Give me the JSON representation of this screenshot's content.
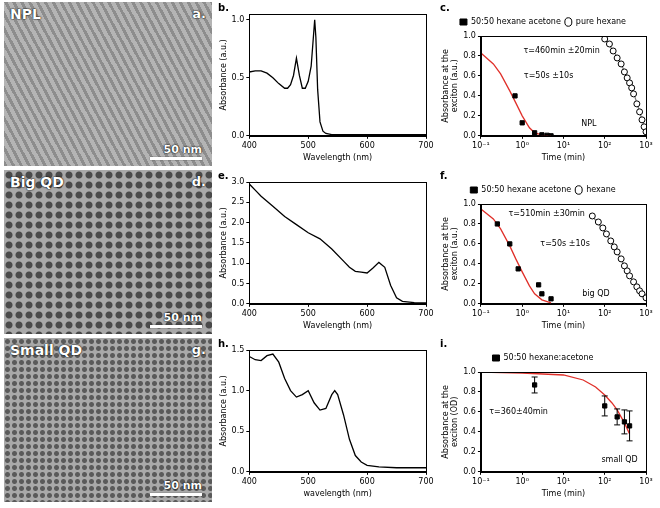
{
  "images": [
    {
      "panel": "a.",
      "label": "NPL",
      "scale_bar": "50 nm"
    },
    {
      "panel": "d.",
      "label": "Big QD",
      "scale_bar": "50 nm"
    },
    {
      "panel": "g.",
      "label": "Small QD",
      "scale_bar": "50 nm"
    }
  ],
  "chart_data": [
    {
      "panel": "b.",
      "type": "line",
      "xlabel": "Wavelength (nm)",
      "ylabel": "Absorbance (a.u.)",
      "xlim": [
        400,
        700
      ],
      "xticks": [
        400,
        500,
        600,
        700
      ],
      "ylim": [
        0,
        1.05
      ],
      "yticks": [
        {
          "value": 0,
          "label": "0.0"
        },
        0.5,
        {
          "value": 1,
          "label": "1.0"
        }
      ],
      "grid": false,
      "series": [
        {
          "color": "#000000",
          "marker": "none",
          "line_style": "solid",
          "x": [
            400,
            410,
            420,
            430,
            440,
            450,
            460,
            465,
            470,
            475,
            480,
            485,
            490,
            495,
            500,
            505,
            508,
            511,
            513,
            516,
            520,
            525,
            530,
            540,
            560,
            600,
            650,
            700
          ],
          "values": [
            0.55,
            0.56,
            0.56,
            0.54,
            0.5,
            0.45,
            0.41,
            0.41,
            0.44,
            0.52,
            0.67,
            0.52,
            0.41,
            0.41,
            0.47,
            0.6,
            0.8,
            1.0,
            0.85,
            0.4,
            0.12,
            0.04,
            0.02,
            0.01,
            0.01,
            0.01,
            0.01,
            0.01
          ]
        }
      ]
    },
    {
      "panel": "c.",
      "type": "scatter",
      "xlabel": "Time (min)",
      "ylabel": "Absorbance at the exciton (a.u.)",
      "log": "x",
      "xlim": [
        0.1,
        1000
      ],
      "xticks": [
        {
          "value": 0.1,
          "label": "10⁻¹"
        },
        {
          "value": 1,
          "label": "10⁰"
        },
        {
          "value": 10,
          "label": "10¹"
        },
        {
          "value": 100,
          "label": "10²"
        },
        {
          "value": 1000,
          "label": "10³"
        }
      ],
      "ylim": [
        0,
        1
      ],
      "yticks": [
        {
          "value": 0,
          "label": "0.0"
        },
        0.2,
        0.4,
        0.6,
        0.8,
        {
          "value": 1,
          "label": "1.0"
        }
      ],
      "grid": false,
      "legend": "top",
      "annotations": [
        "τ=50s ±10s",
        "τ=460min ±20min",
        "NPL"
      ],
      "series": [
        {
          "name": "50:50 hexane acetone",
          "color": "#000000",
          "marker": "square",
          "line_style": "none",
          "x": [
            0.67,
            1,
            2,
            3,
            4,
            5
          ],
          "values": [
            0.4,
            0.13,
            0.03,
            0.01,
            0.005,
            0
          ]
        },
        {
          "name": "pure hexane",
          "color": "#000000",
          "marker": "open_circle",
          "line_style": "none",
          "x": [
            100,
            130,
            160,
            200,
            250,
            300,
            350,
            400,
            450,
            500,
            600,
            700,
            800,
            900,
            1000
          ],
          "values": [
            0.97,
            0.92,
            0.85,
            0.78,
            0.72,
            0.64,
            0.58,
            0.53,
            0.48,
            0.42,
            0.32,
            0.24,
            0.16,
            0.09,
            0.04
          ]
        },
        {
          "color": "#e0302a",
          "marker": "none",
          "line_style": "solid",
          "x": [
            0.1,
            0.2,
            0.3,
            0.5,
            0.7,
            1,
            1.5,
            2,
            3,
            5
          ],
          "values": [
            0.83,
            0.72,
            0.62,
            0.45,
            0.33,
            0.2,
            0.08,
            0.03,
            0.01,
            0
          ]
        },
        {
          "color": "#808080",
          "marker": "none",
          "line_style": "solid",
          "x": [
            100,
            200,
            300,
            400,
            500,
            600,
            700,
            800,
            900,
            1000
          ],
          "values": [
            0.98,
            0.79,
            0.65,
            0.53,
            0.43,
            0.33,
            0.24,
            0.16,
            0.1,
            0.05
          ]
        }
      ]
    },
    {
      "panel": "e.",
      "type": "line",
      "xlabel": "Wavelength (nm)",
      "ylabel": "Absorbance (a.u.)",
      "xlim": [
        400,
        700
      ],
      "xticks": [
        400,
        500,
        600,
        700
      ],
      "ylim": [
        0,
        3
      ],
      "yticks": [
        {
          "value": 0,
          "label": "0.0"
        },
        0.5,
        {
          "value": 1,
          "label": "1.0"
        },
        1.5,
        {
          "value": 2,
          "label": "2.0"
        },
        2.5,
        {
          "value": 3,
          "label": "3.0"
        }
      ],
      "grid": false,
      "series": [
        {
          "color": "#000000",
          "marker": "none",
          "line_style": "solid",
          "x": [
            400,
            410,
            420,
            440,
            460,
            480,
            500,
            520,
            540,
            560,
            570,
            580,
            590,
            600,
            610,
            620,
            630,
            640,
            650,
            660,
            680,
            700
          ],
          "values": [
            2.95,
            2.8,
            2.65,
            2.4,
            2.15,
            1.95,
            1.75,
            1.6,
            1.35,
            1.05,
            0.9,
            0.8,
            0.78,
            0.76,
            0.88,
            1.02,
            0.9,
            0.45,
            0.15,
            0.06,
            0.03,
            0.02
          ]
        }
      ]
    },
    {
      "panel": "f.",
      "type": "scatter",
      "xlabel": "Time (min)",
      "ylabel": "Absorbance at the exciton (a.u.)",
      "log": "x",
      "xlim": [
        0.1,
        1000
      ],
      "xticks": [
        {
          "value": 0.1,
          "label": "10⁻¹"
        },
        {
          "value": 1,
          "label": "10⁰"
        },
        {
          "value": 10,
          "label": "10¹"
        },
        {
          "value": 100,
          "label": "10²"
        },
        {
          "value": 1000,
          "label": "10³"
        }
      ],
      "ylim": [
        0,
        1
      ],
      "yticks": [
        {
          "value": 0,
          "label": "0.0"
        },
        0.2,
        0.4,
        0.6,
        0.8,
        {
          "value": 1,
          "label": "1.0"
        }
      ],
      "grid": false,
      "legend": "top",
      "annotations": [
        "τ=50s ±10s",
        "τ=510min ±30min",
        "big QD"
      ],
      "series": [
        {
          "name": "50:50 hexane acetone",
          "color": "#000000",
          "marker": "square",
          "line_style": "none",
          "x": [
            0.25,
            0.5,
            0.8,
            2.5,
            3,
            5
          ],
          "values": [
            0.8,
            0.6,
            0.35,
            0.19,
            0.1,
            0.05
          ]
        },
        {
          "name": "hexane",
          "color": "#000000",
          "marker": "open_circle",
          "line_style": "none",
          "x": [
            50,
            70,
            90,
            110,
            140,
            170,
            200,
            250,
            300,
            350,
            400,
            500,
            600,
            700,
            800,
            1000
          ],
          "values": [
            0.88,
            0.82,
            0.76,
            0.7,
            0.63,
            0.57,
            0.52,
            0.45,
            0.38,
            0.33,
            0.28,
            0.22,
            0.17,
            0.13,
            0.1,
            0.06
          ]
        },
        {
          "color": "#e0302a",
          "marker": "none",
          "line_style": "solid",
          "x": [
            0.1,
            0.2,
            0.3,
            0.5,
            0.7,
            1,
            1.5,
            2,
            3,
            5
          ],
          "values": [
            0.95,
            0.85,
            0.75,
            0.58,
            0.45,
            0.32,
            0.18,
            0.1,
            0.04,
            0.01
          ]
        },
        {
          "color": "#808080",
          "marker": "none",
          "line_style": "solid",
          "x": [
            50,
            100,
            200,
            300,
            400,
            500,
            600,
            700,
            800,
            1000
          ],
          "values": [
            0.88,
            0.72,
            0.52,
            0.38,
            0.28,
            0.22,
            0.17,
            0.13,
            0.1,
            0.06
          ]
        }
      ]
    },
    {
      "panel": "h.",
      "type": "line",
      "xlabel": "wavelength (nm)",
      "ylabel": "Absorbance (a.u.)",
      "xlim": [
        400,
        700
      ],
      "xticks": [
        400,
        500,
        600,
        700
      ],
      "ylim": [
        0,
        1.5
      ],
      "yticks": [
        {
          "value": 0,
          "label": "0.0"
        },
        0.5,
        {
          "value": 1,
          "label": "1.0"
        },
        1.5
      ],
      "grid": false,
      "series": [
        {
          "color": "#000000",
          "marker": "none",
          "line_style": "solid",
          "x": [
            400,
            410,
            420,
            430,
            440,
            450,
            460,
            470,
            480,
            490,
            500,
            510,
            520,
            530,
            540,
            545,
            550,
            560,
            570,
            580,
            590,
            600,
            620,
            650,
            700
          ],
          "values": [
            1.42,
            1.38,
            1.37,
            1.43,
            1.45,
            1.35,
            1.15,
            1.0,
            0.92,
            0.95,
            1.0,
            0.85,
            0.76,
            0.78,
            0.95,
            1.0,
            0.95,
            0.7,
            0.4,
            0.2,
            0.12,
            0.08,
            0.06,
            0.05,
            0.05
          ]
        }
      ]
    },
    {
      "panel": "i.",
      "type": "scatter",
      "xlabel": "Time (min)",
      "ylabel": "Absorbance at the exciton (OD)",
      "log": "x",
      "xlim": [
        0.1,
        1000
      ],
      "xticks": [
        {
          "value": 0.1,
          "label": "10⁻¹"
        },
        {
          "value": 1,
          "label": "10⁰"
        },
        {
          "value": 10,
          "label": "10¹"
        },
        {
          "value": 100,
          "label": "10²"
        },
        {
          "value": 1000,
          "label": "10³"
        }
      ],
      "ylim": [
        0,
        1
      ],
      "yticks": [
        {
          "value": 0,
          "label": "0.0"
        },
        0.2,
        0.4,
        0.6,
        0.8,
        {
          "value": 1,
          "label": "1.0"
        }
      ],
      "grid": false,
      "legend": "top",
      "annotations": [
        "τ=360±40min",
        "small QD"
      ],
      "series": [
        {
          "name": "50:50 hexane:acetone",
          "color": "#000000",
          "marker": "square",
          "line_style": "none",
          "x": [
            2,
            100,
            200,
            300,
            400
          ],
          "values": [
            0.87,
            0.66,
            0.55,
            0.5,
            0.46
          ],
          "errors": [
            0.08,
            0.1,
            0.08,
            0.12,
            0.15
          ]
        },
        {
          "color": "#e0302a",
          "marker": "none",
          "line_style": "solid",
          "x": [
            0.1,
            1,
            10,
            30,
            60,
            100,
            150,
            200,
            300,
            400
          ],
          "values": [
            1.0,
            0.99,
            0.97,
            0.92,
            0.85,
            0.77,
            0.69,
            0.62,
            0.49,
            0.38
          ]
        }
      ]
    }
  ]
}
